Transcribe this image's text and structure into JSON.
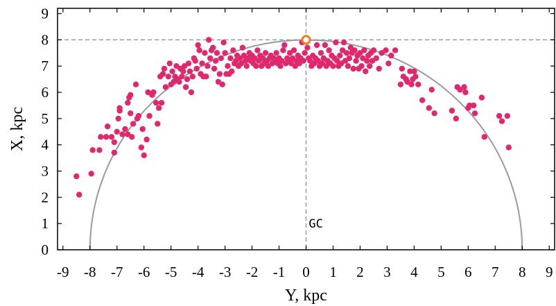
{
  "chart_data": {
    "type": "scatter",
    "xlabel": "Y, kpc",
    "ylabel": "X, kpc",
    "xlim": [
      -9.2,
      9.2
    ],
    "ylim": [
      0,
      9.2
    ],
    "xticks": [
      -9,
      -8,
      -7,
      -6,
      -5,
      -4,
      -3,
      -2,
      -1,
      0,
      1,
      2,
      3,
      4,
      5,
      6,
      7,
      8,
      9
    ],
    "yticks": [
      0,
      1,
      2,
      3,
      4,
      5,
      6,
      7,
      8,
      9
    ],
    "grid": false,
    "annotations": [
      {
        "text": "GC",
        "x": 0.1,
        "y": 0.85
      }
    ],
    "reference_lines": {
      "horizontal_y": 8.0,
      "vertical_x": 0.0
    },
    "circle": {
      "center": [
        0,
        0
      ],
      "radius": 8.0
    },
    "sun": {
      "x": 0.0,
      "y": 8.0
    },
    "colors": {
      "points": "#e0286e",
      "circle": "#9a9a9a",
      "dashed": "#9a9a9a",
      "sun": "#f07c1c"
    },
    "series": [
      {
        "points": [
          [
            -8.5,
            2.8
          ],
          [
            -8.4,
            2.1
          ],
          [
            -7.95,
            2.9
          ],
          [
            -7.9,
            3.8
          ],
          [
            -7.65,
            3.8
          ],
          [
            -7.6,
            4.3
          ],
          [
            -7.4,
            4.3
          ],
          [
            -7.35,
            4.7
          ],
          [
            -7.2,
            4.3
          ],
          [
            -7.1,
            4.1
          ],
          [
            -7.1,
            3.7
          ],
          [
            -7.0,
            4.5
          ],
          [
            -6.95,
            5.0
          ],
          [
            -6.9,
            5.3
          ],
          [
            -6.9,
            5.4
          ],
          [
            -6.8,
            4.4
          ],
          [
            -6.7,
            4.6
          ],
          [
            -6.6,
            4.4
          ],
          [
            -6.6,
            5.6
          ],
          [
            -6.55,
            5.8
          ],
          [
            -6.5,
            5.9
          ],
          [
            -6.5,
            5.2
          ],
          [
            -6.45,
            4.3
          ],
          [
            -6.4,
            4.8
          ],
          [
            -6.3,
            6.3
          ],
          [
            -6.25,
            5.0
          ],
          [
            -6.2,
            5.1
          ],
          [
            -6.1,
            3.9
          ],
          [
            -6.05,
            4.6
          ],
          [
            -6.0,
            3.6
          ],
          [
            -5.9,
            4.2
          ],
          [
            -5.85,
            6.0
          ],
          [
            -5.8,
            5.1
          ],
          [
            -5.7,
            5.9
          ],
          [
            -5.65,
            6.0
          ],
          [
            -5.55,
            5.6
          ],
          [
            -5.5,
            4.8
          ],
          [
            -5.45,
            5.4
          ],
          [
            -5.4,
            6.6
          ],
          [
            -5.35,
            5.6
          ],
          [
            -5.3,
            6.7
          ],
          [
            -5.25,
            6.9
          ],
          [
            -5.2,
            6.2
          ],
          [
            -5.1,
            6.6
          ],
          [
            -5.05,
            7.1
          ],
          [
            -5.0,
            6.3
          ],
          [
            -4.95,
            6.8
          ],
          [
            -4.9,
            6.4
          ],
          [
            -4.85,
            6.6
          ],
          [
            -4.8,
            7.0
          ],
          [
            -4.75,
            6.5
          ],
          [
            -4.7,
            6.4
          ],
          [
            -4.65,
            6.9
          ],
          [
            -4.6,
            6.6
          ],
          [
            -4.55,
            6.8
          ],
          [
            -4.5,
            7.0
          ],
          [
            -4.45,
            6.2
          ],
          [
            -4.4,
            6.5
          ],
          [
            -4.35,
            7.1
          ],
          [
            -4.3,
            6.8
          ],
          [
            -4.25,
            6.0
          ],
          [
            -4.2,
            6.6
          ],
          [
            -4.15,
            7.3
          ],
          [
            -4.1,
            7.2
          ],
          [
            -4.05,
            6.9
          ],
          [
            -4.0,
            7.8
          ],
          [
            -3.95,
            7.6
          ],
          [
            -3.9,
            6.7
          ],
          [
            -3.85,
            7.1
          ],
          [
            -3.8,
            6.6
          ],
          [
            -3.75,
            7.5
          ],
          [
            -3.7,
            6.6
          ],
          [
            -3.65,
            7.0
          ],
          [
            -3.6,
            8.0
          ],
          [
            -3.55,
            7.3
          ],
          [
            -3.5,
            7.6
          ],
          [
            -3.45,
            7.7
          ],
          [
            -3.4,
            6.9
          ],
          [
            -3.35,
            7.2
          ],
          [
            -3.3,
            7.5
          ],
          [
            -3.25,
            6.4
          ],
          [
            -3.2,
            6.7
          ],
          [
            -3.15,
            7.3
          ],
          [
            -3.1,
            6.3
          ],
          [
            -3.05,
            7.9
          ],
          [
            -3.0,
            7.5
          ],
          [
            -2.95,
            6.7
          ],
          [
            -2.9,
            7.0
          ],
          [
            -2.85,
            6.7
          ],
          [
            -2.8,
            7.3
          ],
          [
            -2.75,
            6.8
          ],
          [
            -2.7,
            7.6
          ],
          [
            -2.65,
            7.1
          ],
          [
            -2.6,
            7.2
          ],
          [
            -2.55,
            7.4
          ],
          [
            -2.5,
            7.0
          ],
          [
            -2.45,
            7.3
          ],
          [
            -2.4,
            7.1
          ],
          [
            -2.35,
            7.7
          ],
          [
            -2.3,
            7.4
          ],
          [
            -2.25,
            7.2
          ],
          [
            -2.2,
            7.0
          ],
          [
            -2.15,
            7.3
          ],
          [
            -2.1,
            7.5
          ],
          [
            -2.05,
            7.2
          ],
          [
            -2.0,
            7.4
          ],
          [
            -1.95,
            7.1
          ],
          [
            -1.9,
            7.3
          ],
          [
            -1.85,
            7.0
          ],
          [
            -1.8,
            7.6
          ],
          [
            -1.75,
            7.2
          ],
          [
            -1.7,
            7.4
          ],
          [
            -1.65,
            7.0
          ],
          [
            -1.6,
            7.3
          ],
          [
            -1.55,
            7.1
          ],
          [
            -1.5,
            7.5
          ],
          [
            -1.45,
            7.2
          ],
          [
            -1.4,
            7.0
          ],
          [
            -1.35,
            7.3
          ],
          [
            -1.3,
            7.4
          ],
          [
            -1.25,
            7.1
          ],
          [
            -1.2,
            7.3
          ],
          [
            -1.15,
            7.2
          ],
          [
            -1.1,
            7.5
          ],
          [
            -1.05,
            7.1
          ],
          [
            -1.0,
            7.3
          ],
          [
            -0.95,
            7.0
          ],
          [
            -0.9,
            7.2
          ],
          [
            -0.85,
            7.6
          ],
          [
            -0.8,
            7.8
          ],
          [
            -0.75,
            7.1
          ],
          [
            -0.7,
            7.3
          ],
          [
            -0.65,
            7.2
          ],
          [
            -0.6,
            7.5
          ],
          [
            -0.55,
            7.1
          ],
          [
            -0.5,
            7.3
          ],
          [
            -0.45,
            7.6
          ],
          [
            -0.4,
            7.0
          ],
          [
            -0.35,
            7.2
          ],
          [
            -0.3,
            7.4
          ],
          [
            -0.25,
            7.1
          ],
          [
            -0.2,
            7.3
          ],
          [
            -0.15,
            7.9
          ],
          [
            -0.1,
            7.2
          ],
          [
            -0.05,
            7.5
          ],
          [
            0.05,
            7.7
          ],
          [
            0.1,
            7.3
          ],
          [
            0.15,
            7.2
          ],
          [
            0.2,
            7.0
          ],
          [
            0.25,
            7.4
          ],
          [
            0.3,
            7.1
          ],
          [
            0.35,
            7.3
          ],
          [
            0.4,
            7.8
          ],
          [
            0.45,
            7.2
          ],
          [
            0.5,
            7.0
          ],
          [
            0.55,
            7.5
          ],
          [
            0.6,
            7.1
          ],
          [
            0.65,
            7.3
          ],
          [
            0.7,
            7.8
          ],
          [
            0.75,
            7.0
          ],
          [
            0.8,
            7.2
          ],
          [
            0.85,
            7.6
          ],
          [
            0.9,
            7.1
          ],
          [
            0.95,
            7.4
          ],
          [
            1.0,
            7.0
          ],
          [
            1.05,
            7.3
          ],
          [
            1.1,
            7.9
          ],
          [
            1.15,
            7.2
          ],
          [
            1.2,
            7.0
          ],
          [
            1.25,
            7.4
          ],
          [
            1.3,
            7.1
          ],
          [
            1.35,
            7.6
          ],
          [
            1.4,
            7.9
          ],
          [
            1.45,
            7.2
          ],
          [
            1.5,
            7.5
          ],
          [
            1.55,
            7.0
          ],
          [
            1.6,
            7.3
          ],
          [
            1.65,
            7.7
          ],
          [
            1.7,
            7.5
          ],
          [
            1.75,
            6.9
          ],
          [
            1.8,
            7.6
          ],
          [
            1.85,
            7.2
          ],
          [
            1.9,
            7.4
          ],
          [
            1.95,
            6.9
          ],
          [
            2.0,
            7.5
          ],
          [
            2.05,
            7.0
          ],
          [
            2.1,
            7.3
          ],
          [
            2.15,
            7.6
          ],
          [
            2.2,
            6.8
          ],
          [
            2.25,
            7.2
          ],
          [
            2.3,
            7.4
          ],
          [
            2.35,
            7.0
          ],
          [
            2.4,
            7.5
          ],
          [
            2.45,
            7.2
          ],
          [
            2.5,
            7.6
          ],
          [
            2.6,
            7.3
          ],
          [
            2.7,
            6.9
          ],
          [
            2.8,
            7.5
          ],
          [
            2.95,
            7.6
          ],
          [
            3.05,
            7.1
          ],
          [
            3.15,
            7.4
          ],
          [
            3.3,
            7.6
          ],
          [
            3.5,
            6.3
          ],
          [
            3.55,
            6.9
          ],
          [
            3.6,
            6.6
          ],
          [
            3.7,
            6.5
          ],
          [
            3.75,
            6.4
          ],
          [
            3.85,
            6.8
          ],
          [
            3.9,
            6.3
          ],
          [
            3.95,
            6.5
          ],
          [
            4.0,
            6.8
          ],
          [
            4.05,
            6.6
          ],
          [
            4.15,
            6.3
          ],
          [
            4.3,
            5.7
          ],
          [
            4.55,
            5.4
          ],
          [
            4.65,
            6.1
          ],
          [
            4.75,
            5.2
          ],
          [
            5.4,
            5.3
          ],
          [
            5.55,
            5.0
          ],
          [
            5.6,
            6.2
          ],
          [
            5.7,
            6.1
          ],
          [
            5.85,
            6.2
          ],
          [
            5.9,
            6.0
          ],
          [
            6.0,
            5.4
          ],
          [
            6.05,
            5.5
          ],
          [
            6.2,
            5.5
          ],
          [
            6.25,
            5.2
          ],
          [
            6.5,
            5.8
          ],
          [
            6.6,
            4.3
          ],
          [
            7.15,
            5.1
          ],
          [
            7.25,
            4.9
          ],
          [
            7.45,
            5.1
          ],
          [
            7.5,
            3.9
          ]
        ]
      }
    ]
  }
}
